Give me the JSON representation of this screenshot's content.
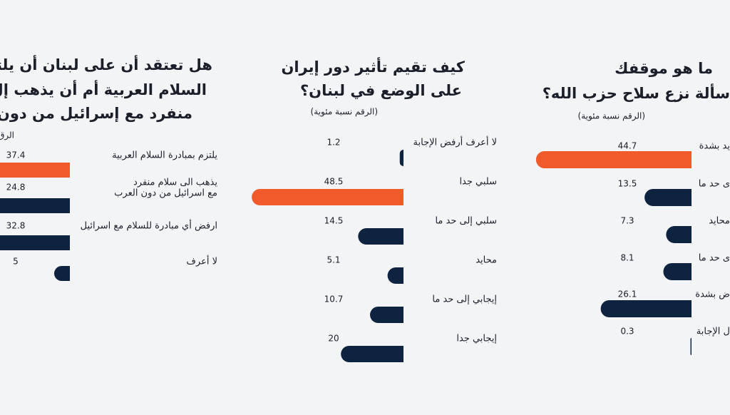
{
  "chart_data": [
    {
      "type": "bar",
      "title": [
        "هل تعتقد أن على لبنان أن يلتزم",
        "السلام العربية أم أن يذهب إل",
        "منفرد مع إسرائيل من دون ال"
      ],
      "subtitle": "(الرق",
      "categories": [
        "يلتزم بمبادرة السلام العربية",
        [
          "يذهب الى سلام منفرد",
          "مع اسرائيل من دون العرب"
        ],
        "ارفض أي مبادرة للسلام مع اسرائيل",
        "لا أعرف"
      ],
      "values": [
        37.4,
        24.8,
        32.8,
        5
      ],
      "colors": [
        "#f15a2b",
        "#0e2340",
        "#0e2340",
        "#0e2340"
      ]
    },
    {
      "type": "bar",
      "title": [
        "كيف تقيم تأثير دور إيران",
        "على الوضع في لبنان؟"
      ],
      "subtitle": "(الرقم نسبة مئوية)",
      "categories": [
        "لا أعرف أرفض الإجابة",
        "سلبي جدا",
        "سلبي إلى حد ما",
        "محايد",
        "إيجابي إلى حد ما",
        "إيجابي جدا"
      ],
      "values": [
        1.2,
        48.5,
        14.5,
        5.1,
        10.7,
        20
      ],
      "colors": [
        "#0e2340",
        "#f15a2b",
        "#0e2340",
        "#0e2340",
        "#0e2340",
        "#0e2340"
      ]
    },
    {
      "type": "bar",
      "title": [
        "ما هو موقفك",
        "سألة نزع سلاح حزب الله؟"
      ],
      "subtitle": "(الرقم نسبة مئوية)",
      "categories": [
        "يد بشدة",
        "ى حد ما",
        "محايد",
        "ى حد ما",
        "ض بشدة",
        "ل الإجابة"
      ],
      "values": [
        44.7,
        13.5,
        7.3,
        8.1,
        26.1,
        0.3
      ],
      "colors": [
        "#f15a2b",
        "#0e2340",
        "#0e2340",
        "#0e2340",
        "#0e2340",
        "#0e2340"
      ]
    }
  ]
}
